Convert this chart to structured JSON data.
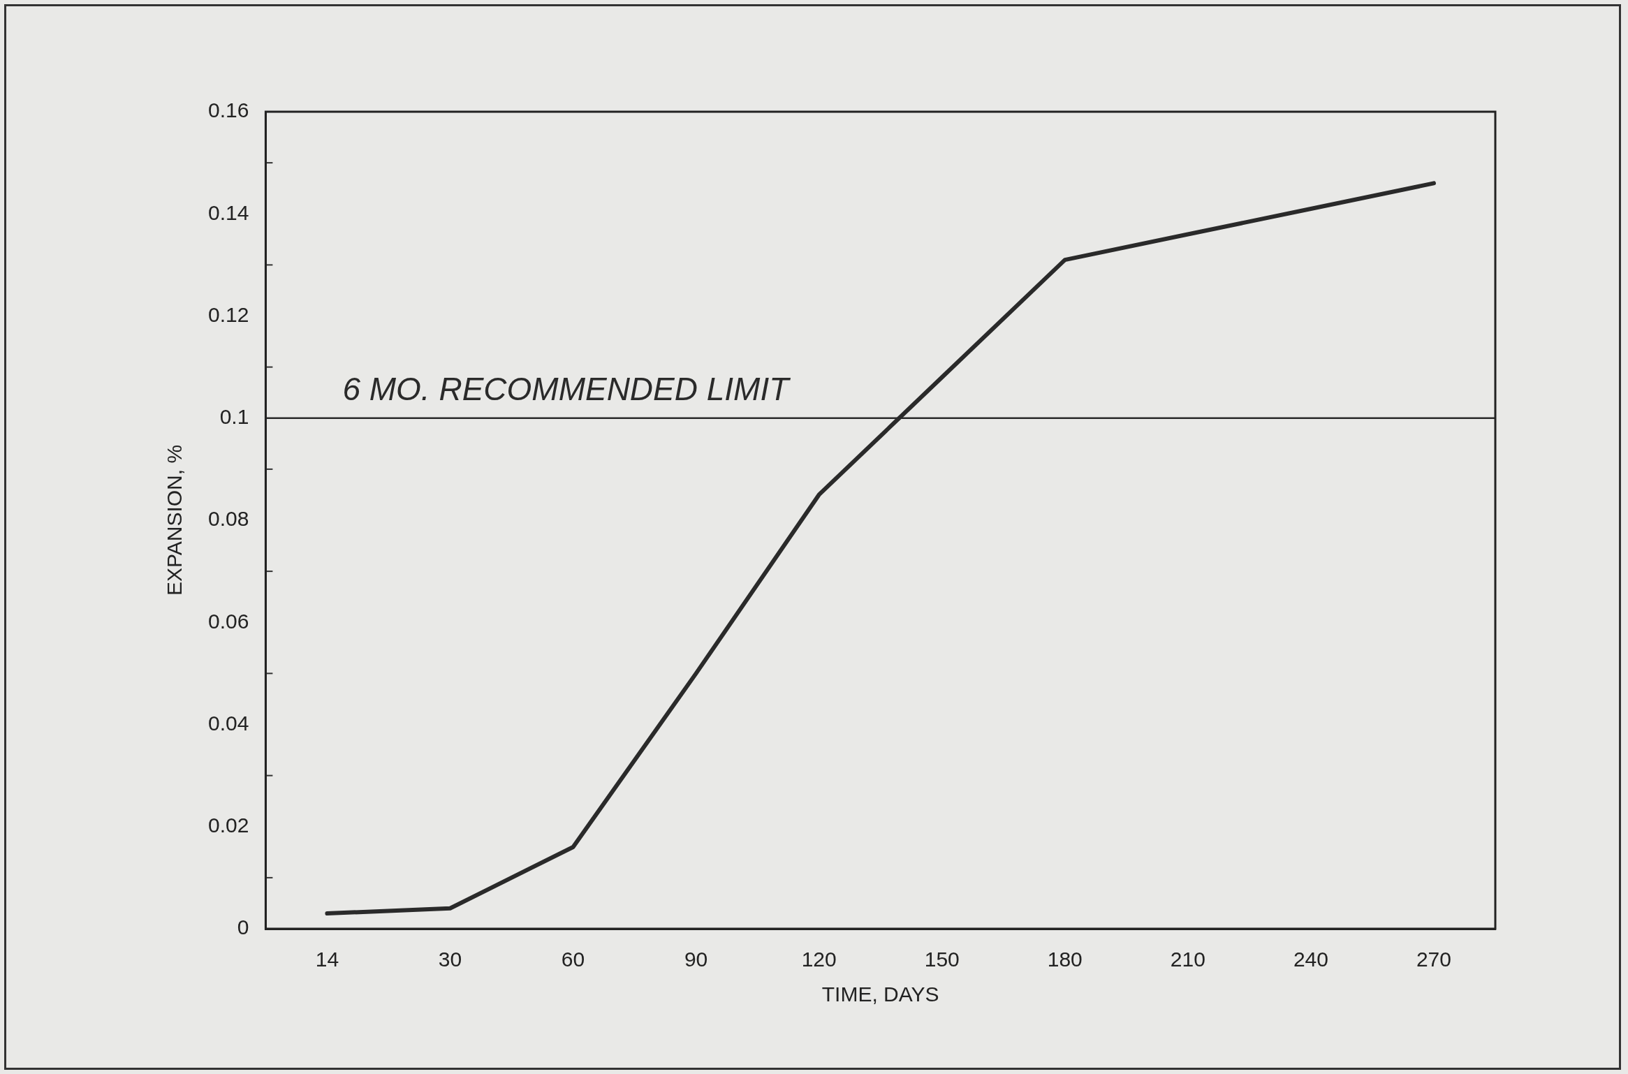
{
  "chart_data": {
    "type": "line",
    "xlabel": "TIME, DAYS",
    "ylabel": "EXPANSION, %",
    "categories": [
      "14",
      "30",
      "60",
      "90",
      "120",
      "150",
      "180",
      "210",
      "240",
      "270"
    ],
    "series": [
      {
        "color": "#2a2a2a",
        "values": [
          0.003,
          0.004,
          0.016,
          0.05,
          0.085,
          0.108,
          0.131,
          0.136,
          0.141,
          0.146
        ]
      }
    ],
    "ylim": [
      0,
      0.16
    ],
    "yticks": [
      0,
      0.02,
      0.04,
      0.06,
      0.08,
      0.1,
      0.12,
      0.14,
      0.16
    ],
    "ref_lines": [
      {
        "axis": "y",
        "value": 0.1,
        "label": "6 MO. RECOMMENDED LIMIT",
        "color": "#2a2a2a"
      }
    ],
    "grid": false,
    "legend": false,
    "marker": "none",
    "line_style": "solid"
  }
}
